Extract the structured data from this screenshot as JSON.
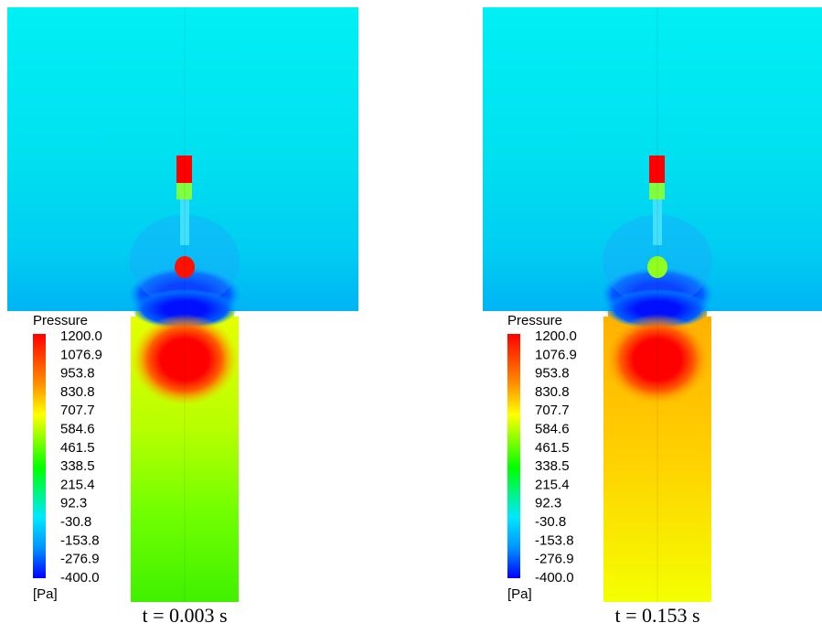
{
  "panels": [
    {
      "legend": {
        "title": "Pressure",
        "ticks": [
          "1200.0",
          "1076.9",
          "953.8",
          "830.8",
          "707.7",
          "584.6",
          "461.5",
          "338.5",
          "215.4",
          "92.3",
          "-30.8",
          "-153.8",
          "-276.9",
          "-400.0"
        ],
        "unit": "[Pa]"
      },
      "caption": "t = 0.003 s"
    },
    {
      "legend": {
        "title": "Pressure",
        "ticks": [
          "1200.0",
          "1076.9",
          "953.8",
          "830.8",
          "707.7",
          "584.6",
          "461.5",
          "338.5",
          "215.4",
          "92.3",
          "-30.8",
          "-153.8",
          "-276.9",
          "-400.0"
        ],
        "unit": "[Pa]"
      },
      "caption": "t = 0.153 s"
    }
  ]
}
